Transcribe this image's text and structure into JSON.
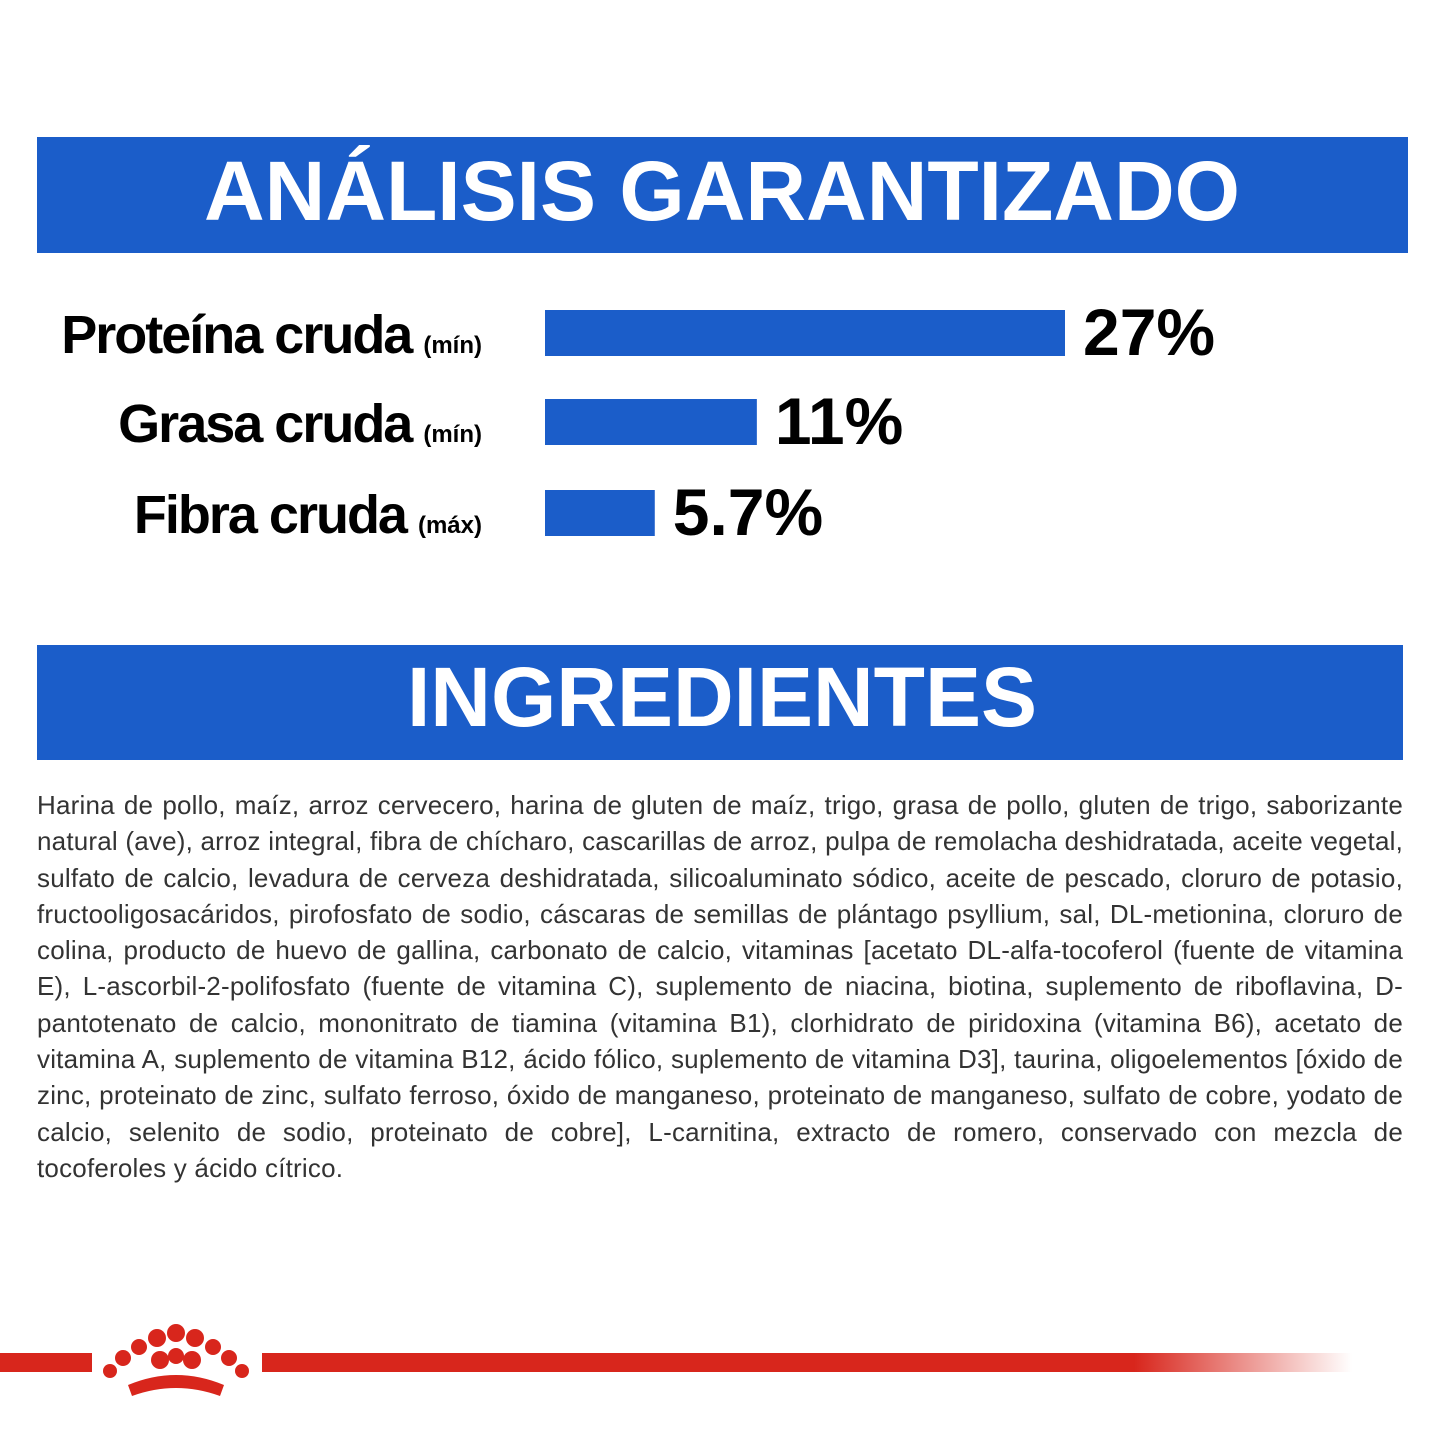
{
  "chart_data": {
    "type": "bar",
    "orientation": "horizontal",
    "title": "ANÁLISIS GARANTIZADO",
    "categories": [
      "Proteína cruda",
      "Grasa cruda",
      "Fibra cruda"
    ],
    "qualifiers": [
      "(mín)",
      "(mín)",
      "(máx)"
    ],
    "values": [
      27,
      11,
      5.7
    ],
    "value_labels": [
      "27%",
      "11%",
      "5.7%"
    ],
    "color": "#1b5dc9"
  },
  "ingredients": {
    "title": "INGREDIENTES",
    "text": "Harina de pollo, maíz, arroz cervecero, harina de gluten de maíz, trigo, grasa de pollo, gluten de trigo, saborizante natural (ave), arroz integral, fibra de chícharo, cascarillas de arroz, pulpa de remolacha deshidratada, aceite vegetal, sulfato de calcio, levadura de cerveza deshidratada, silicoaluminato sódico, aceite de pescado, cloruro de potasio, fructooligosacáridos, pirofosfato de sodio, cáscaras de semillas de plántago psyllium, sal, DL-metionina, cloruro de colina, producto de huevo de gallina, carbonato de calcio, vitaminas [acetato DL-alfa-tocoferol (fuente de vitamina E), L-ascorbil-2-polifosfato (fuente de vitamina C), suplemento de niacina, biotina, suplemento de riboflavina, D-pantotenato de calcio, mononitrato de tiamina (vitamina B1), clorhidrato de piridoxina (vitamina B6), acetato de vitamina A, suplemento de vitamina B12, ácido fólico, suplemento de vitamina D3], taurina, oligoelementos [óxido de zinc, proteinato de zinc, sulfato ferroso, óxido de manganeso, proteinato de manganeso, sulfato de cobre, yodato de calcio, selenito de sodio, proteinato de cobre], L-carnitina, extracto de romero, conservado con mezcla de tocoferoles y ácido cítrico."
  }
}
